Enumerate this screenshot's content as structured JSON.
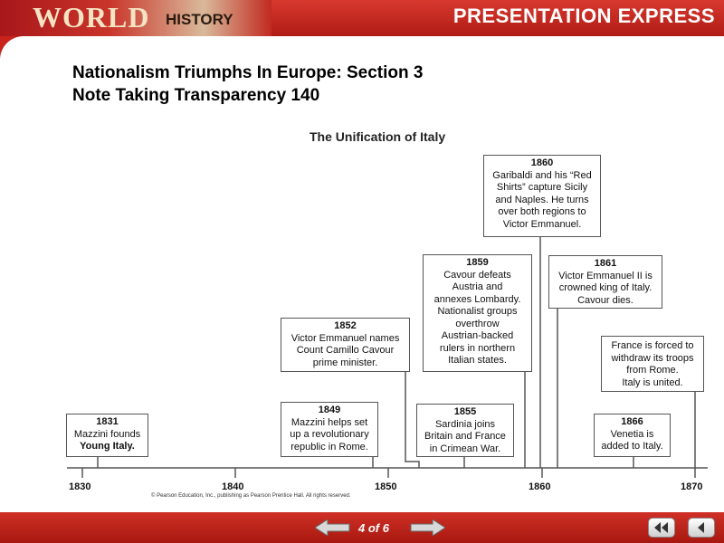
{
  "header": {
    "logo_world": "WORLD",
    "logo_history": "HISTORY",
    "app_title": "PRESENTATION EXPRESS"
  },
  "slide": {
    "title_line1": "Nationalism Triumphs In Europe: Section 3",
    "title_line2": "Note Taking Transparency 140",
    "chart_title": "The Unification of Italy",
    "copyright": "© Pearson Education, Inc., publishing as Pearson Prentice Hall. All rights reserved."
  },
  "timeline": {
    "ticks": [
      "1830",
      "1840",
      "1850",
      "1860",
      "1870"
    ],
    "events": [
      {
        "year": "1831",
        "text": [
          "Mazzini founds",
          "Young Italy."
        ]
      },
      {
        "year": "1849",
        "text": [
          "Mazzini helps set",
          "up a revolutionary",
          "republic in Rome."
        ]
      },
      {
        "year": "1852",
        "text": [
          "Victor Emmanuel names",
          "Count Camillo Cavour",
          "prime minister."
        ]
      },
      {
        "year": "1855",
        "text": [
          "Sardinia joins",
          "Britain and France",
          "in Crimean War."
        ]
      },
      {
        "year": "1859",
        "text": [
          "Cavour defeats",
          "Austria and",
          "annexes Lombardy.",
          "Nationalist groups",
          "overthrow",
          "Austrian-backed",
          "rulers in northern",
          "Italian states."
        ]
      },
      {
        "year": "1860",
        "text": [
          "Garibaldi and his “Red",
          "Shirts” capture Sicily",
          "and Naples. He turns",
          "over both regions to",
          "Victor Emmanuel."
        ]
      },
      {
        "year": "1861",
        "text": [
          "Victor Emmanuel II is",
          "crowned king of Italy.",
          "Cavour dies."
        ]
      },
      {
        "year": "",
        "text": [
          "France is forced to",
          "withdraw its troops",
          "from Rome.",
          "Italy is united."
        ]
      },
      {
        "year": "1866",
        "text": [
          "Venetia is",
          "added to Italy."
        ]
      }
    ]
  },
  "footer": {
    "page_indicator": "4 of 6",
    "prev_icon": "arrow-left-icon",
    "next_icon": "arrow-right-icon",
    "rewind_icon": "rewind-icon",
    "back_icon": "back-icon"
  }
}
